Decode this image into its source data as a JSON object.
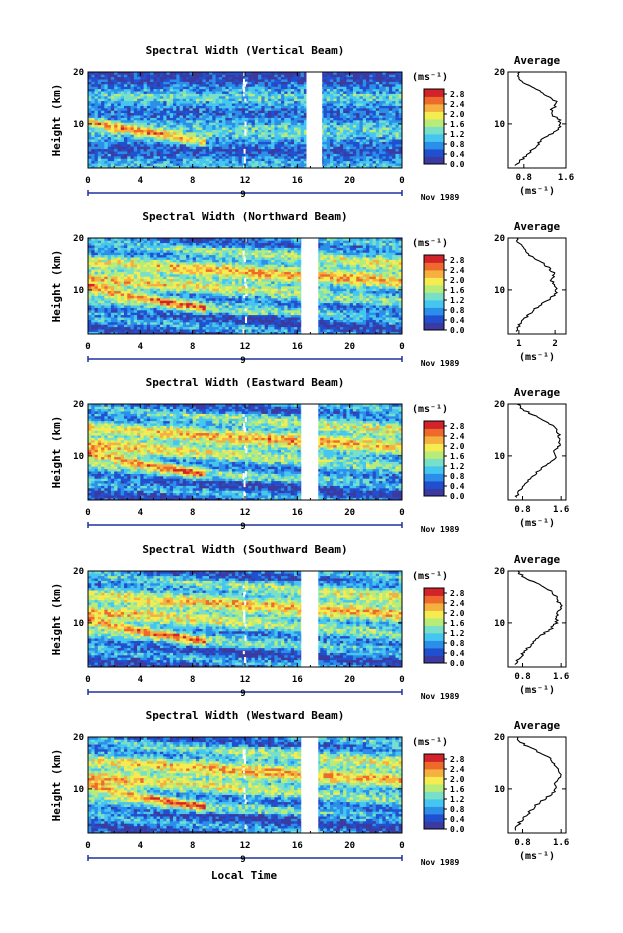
{
  "figure": {
    "bottom_xlabel": "Local Time",
    "ylabel": "Height (km)",
    "colorbar_unit": "(ms⁻¹)",
    "colorbar_ticks": [
      "2.8",
      "2.4",
      "2.0",
      "1.6",
      "1.2",
      "0.8",
      "0.4",
      "0.0"
    ],
    "date_label": "Nov 1989",
    "day_label": "9",
    "colors": {
      "scale": [
        "#3a3aa0",
        "#2050d0",
        "#2b8ee8",
        "#45c6f0",
        "#78e0c8",
        "#b8ec78",
        "#f4ec50",
        "#f5b040",
        "#ee6a2c",
        "#d2232a"
      ],
      "background": "#ffffff"
    }
  },
  "chart_data": [
    {
      "type": "heatmap",
      "title": "Spectral Width (Vertical Beam)",
      "xlabel": "",
      "ylabel": "Height (km)",
      "xlim": [
        0,
        24
      ],
      "ylim": [
        1.5,
        20
      ],
      "xticks": [
        "0",
        "4",
        "8",
        "12",
        "16",
        "20",
        "0"
      ],
      "yticks": [
        "10",
        "20"
      ],
      "data_gap_hours": [
        16.7,
        17.9
      ],
      "colorbar": {
        "label": "(ms⁻¹)",
        "range": [
          0.0,
          3.0
        ],
        "ticks": [
          "2.8",
          "2.4",
          "2.0",
          "1.6",
          "1.2",
          "0.8",
          "0.4",
          "0.0"
        ]
      },
      "average_profile": {
        "title": "Average",
        "xlabel": "(ms⁻¹)",
        "xlim": [
          0.5,
          1.6
        ],
        "xticks": [
          "0.8",
          "1.6"
        ],
        "yticks": [
          "10",
          "20"
        ],
        "height_km": [
          2,
          3,
          4,
          5,
          6,
          7,
          8,
          9,
          10,
          11,
          12,
          13,
          14,
          15,
          16,
          17,
          18,
          19,
          20
        ],
        "values": [
          0.65,
          0.75,
          0.85,
          0.95,
          1.05,
          1.15,
          1.3,
          1.45,
          1.52,
          1.45,
          1.3,
          1.35,
          1.45,
          1.3,
          1.15,
          0.95,
          0.8,
          0.7,
          0.72
        ]
      }
    },
    {
      "type": "heatmap",
      "title": "Spectral Width (Northward Beam)",
      "xlabel": "",
      "ylabel": "Height (km)",
      "xlim": [
        0,
        24
      ],
      "ylim": [
        1.5,
        20
      ],
      "xticks": [
        "0",
        "4",
        "8",
        "12",
        "16",
        "20",
        "0"
      ],
      "yticks": [
        "10",
        "20"
      ],
      "data_gap_hours": [
        16.3,
        17.6
      ],
      "colorbar": {
        "label": "(ms⁻¹)",
        "range": [
          0.0,
          3.0
        ],
        "ticks": [
          "2.8",
          "2.4",
          "2.0",
          "1.6",
          "1.2",
          "0.8",
          "0.4",
          "0.0"
        ]
      },
      "average_profile": {
        "title": "Average",
        "xlabel": "(ms⁻¹)",
        "xlim": [
          0.7,
          2.3
        ],
        "xticks": [
          "1",
          "2"
        ],
        "yticks": [
          "10",
          "20"
        ],
        "height_km": [
          2,
          3,
          4,
          5,
          6,
          7,
          8,
          9,
          10,
          11,
          12,
          13,
          14,
          15,
          16,
          17,
          18,
          19,
          20
        ],
        "values": [
          0.95,
          1.0,
          1.1,
          1.25,
          1.4,
          1.55,
          1.8,
          2.0,
          2.05,
          1.95,
          1.9,
          2.0,
          1.85,
          1.7,
          1.45,
          1.25,
          1.1,
          1.0,
          0.95
        ]
      }
    },
    {
      "type": "heatmap",
      "title": "Spectral Width (Eastward Beam)",
      "xlabel": "",
      "ylabel": "Height (km)",
      "xlim": [
        0,
        24
      ],
      "ylim": [
        1.5,
        20
      ],
      "xticks": [
        "0",
        "4",
        "8",
        "12",
        "16",
        "20",
        "0"
      ],
      "yticks": [
        "10",
        "20"
      ],
      "data_gap_hours": [
        16.3,
        17.6
      ],
      "colorbar": {
        "label": "(ms⁻¹)",
        "range": [
          0.0,
          3.0
        ],
        "ticks": [
          "2.8",
          "2.4",
          "2.0",
          "1.6",
          "1.2",
          "0.8",
          "0.4",
          "0.0"
        ]
      },
      "average_profile": {
        "title": "Average",
        "xlabel": "(ms⁻¹)",
        "xlim": [
          0.5,
          1.7
        ],
        "xticks": [
          "0.8",
          "1.6"
        ],
        "yticks": [
          "10",
          "20"
        ],
        "height_km": [
          2,
          3,
          4,
          5,
          6,
          7,
          8,
          9,
          10,
          11,
          12,
          13,
          14,
          15,
          16,
          17,
          18,
          19,
          20
        ],
        "values": [
          0.65,
          0.72,
          0.8,
          0.9,
          1.0,
          1.1,
          1.25,
          1.4,
          1.5,
          1.45,
          1.55,
          1.6,
          1.55,
          1.5,
          1.4,
          1.2,
          1.0,
          0.8,
          0.7
        ]
      }
    },
    {
      "type": "heatmap",
      "title": "Spectral Width (Southward Beam)",
      "xlabel": "",
      "ylabel": "Height (km)",
      "xlim": [
        0,
        24
      ],
      "ylim": [
        1.5,
        20
      ],
      "xticks": [
        "0",
        "4",
        "8",
        "12",
        "16",
        "20",
        "0"
      ],
      "yticks": [
        "10",
        "20"
      ],
      "data_gap_hours": [
        16.3,
        17.6
      ],
      "colorbar": {
        "label": "(ms⁻¹)",
        "range": [
          0.0,
          3.0
        ],
        "ticks": [
          "2.8",
          "2.4",
          "2.0",
          "1.6",
          "1.2",
          "0.8",
          "0.4",
          "0.0"
        ]
      },
      "average_profile": {
        "title": "Average",
        "xlabel": "(ms⁻¹)",
        "xlim": [
          0.5,
          1.7
        ],
        "xticks": [
          "0.8",
          "1.6"
        ],
        "yticks": [
          "10",
          "20"
        ],
        "height_km": [
          2,
          3,
          4,
          5,
          6,
          7,
          8,
          9,
          10,
          11,
          12,
          13,
          14,
          15,
          16,
          17,
          18,
          19,
          20
        ],
        "values": [
          0.65,
          0.72,
          0.8,
          0.9,
          1.0,
          1.1,
          1.25,
          1.4,
          1.5,
          1.5,
          1.55,
          1.6,
          1.55,
          1.5,
          1.4,
          1.25,
          1.0,
          0.8,
          0.7
        ]
      }
    },
    {
      "type": "heatmap",
      "title": "Spectral Width (Westward Beam)",
      "xlabel": "Local Time",
      "ylabel": "Height (km)",
      "xlim": [
        0,
        24
      ],
      "ylim": [
        1.5,
        20
      ],
      "xticks": [
        "0",
        "4",
        "8",
        "12",
        "16",
        "20",
        "0"
      ],
      "yticks": [
        "10",
        "20"
      ],
      "data_gap_hours": [
        16.3,
        17.6
      ],
      "colorbar": {
        "label": "(ms⁻¹)",
        "range": [
          0.0,
          3.0
        ],
        "ticks": [
          "2.8",
          "2.4",
          "2.0",
          "1.6",
          "1.2",
          "0.8",
          "0.4",
          "0.0"
        ]
      },
      "average_profile": {
        "title": "Average",
        "xlabel": "(ms⁻¹)",
        "xlim": [
          0.5,
          1.7
        ],
        "xticks": [
          "0.8",
          "1.6"
        ],
        "yticks": [
          "10",
          "20"
        ],
        "height_km": [
          2,
          3,
          4,
          5,
          6,
          7,
          8,
          9,
          10,
          11,
          12,
          13,
          14,
          15,
          16,
          17,
          18,
          19,
          20
        ],
        "values": [
          0.62,
          0.7,
          0.78,
          0.88,
          1.0,
          1.1,
          1.25,
          1.4,
          1.5,
          1.45,
          1.55,
          1.6,
          1.5,
          1.45,
          1.35,
          1.15,
          0.95,
          0.75,
          0.68
        ]
      }
    }
  ]
}
